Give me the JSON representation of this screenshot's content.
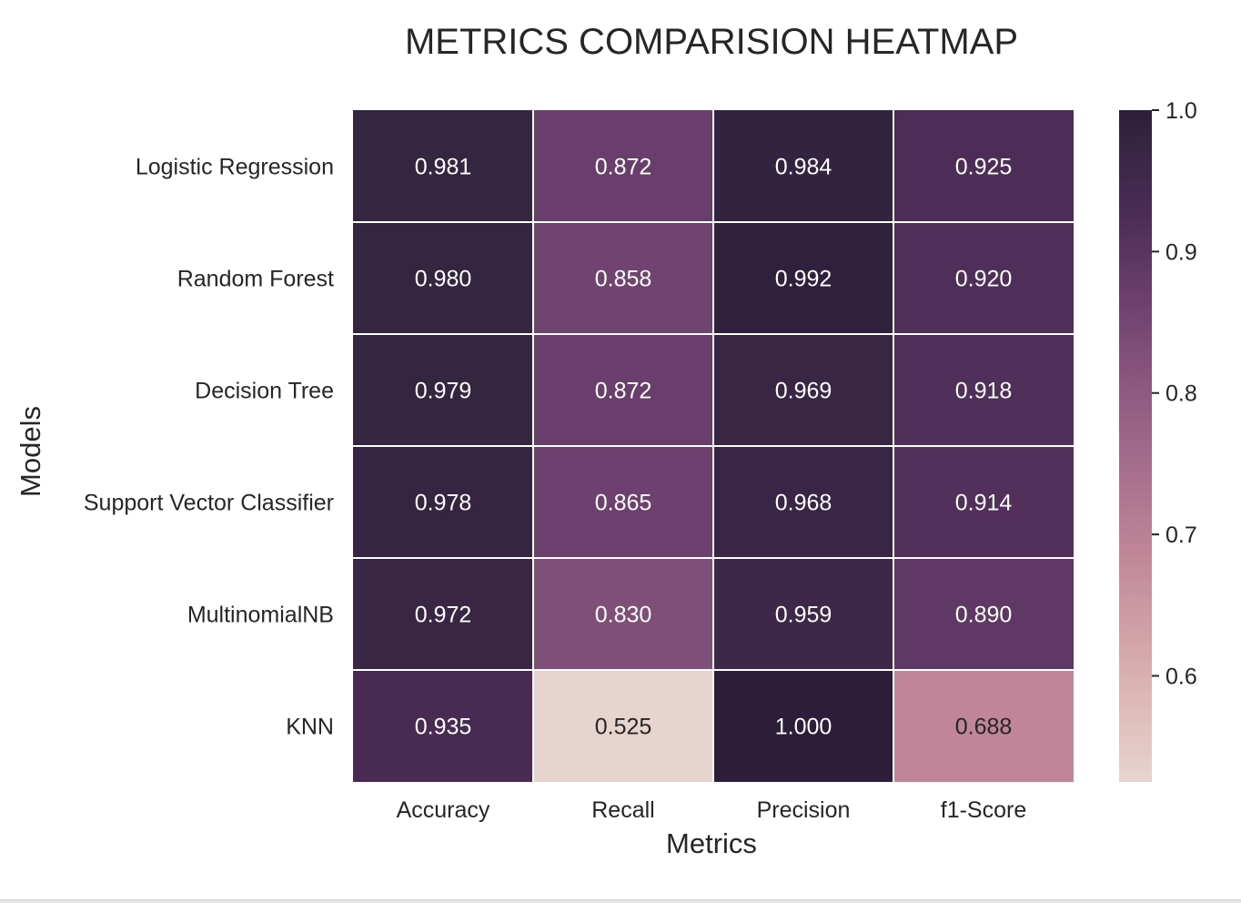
{
  "chart_data": {
    "type": "heatmap",
    "title": "METRICS COMPARISION HEATMAP",
    "xlabel": "Metrics",
    "ylabel": "Models",
    "x": [
      "Accuracy",
      "Recall",
      "Precision",
      "f1-Score"
    ],
    "y": [
      "Logistic Regression",
      "Random Forest",
      "Decision Tree",
      "Support Vector Classifier",
      "MultinomialNB",
      "KNN"
    ],
    "values": [
      [
        0.981,
        0.872,
        0.984,
        0.925
      ],
      [
        0.98,
        0.858,
        0.992,
        0.92
      ],
      [
        0.979,
        0.872,
        0.969,
        0.918
      ],
      [
        0.978,
        0.865,
        0.968,
        0.914
      ],
      [
        0.972,
        0.83,
        0.959,
        0.89
      ],
      [
        0.935,
        0.525,
        1.0,
        0.688
      ]
    ],
    "cell_labels": [
      [
        "0.981",
        "0.872",
        "0.984",
        "0.925"
      ],
      [
        "0.980",
        "0.858",
        "0.992",
        "0.920"
      ],
      [
        "0.979",
        "0.872",
        "0.969",
        "0.918"
      ],
      [
        "0.978",
        "0.865",
        "0.968",
        "0.914"
      ],
      [
        "0.972",
        "0.830",
        "0.959",
        "0.890"
      ],
      [
        "0.935",
        "0.525",
        "1.000",
        "0.688"
      ]
    ],
    "colorbar": {
      "range": [
        0.525,
        1.0
      ],
      "ticks": [
        0.6,
        0.7,
        0.8,
        0.9,
        1.0
      ],
      "tick_labels": [
        "0.6",
        "0.7",
        "0.8",
        "0.9",
        "1.0"
      ],
      "color_stops": [
        {
          "value": 0.525,
          "color": "#e8d4cf"
        },
        {
          "value": 0.59,
          "color": "#dbb5b3"
        },
        {
          "value": 0.69,
          "color": "#bf8497"
        },
        {
          "value": 0.8,
          "color": "#8f5a82"
        },
        {
          "value": 0.87,
          "color": "#6a3e6d"
        },
        {
          "value": 0.93,
          "color": "#4a2b55"
        },
        {
          "value": 0.98,
          "color": "#342541"
        },
        {
          "value": 1.0,
          "color": "#2c1e3b"
        }
      ]
    },
    "annotation_colors": {
      "on_dark": "#ffffff",
      "on_light": "#262626"
    },
    "grid_line_color": "#ffffff",
    "text_color": "#262626"
  }
}
